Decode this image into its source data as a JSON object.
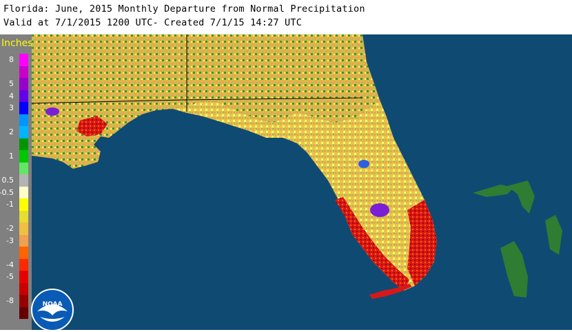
{
  "header": {
    "title_line1": "Florida: June, 2015 Monthly Departure from Normal Precipitation",
    "title_line2": "Valid at 7/1/2015 1200 UTC- Created 7/1/15 14:27 UTC"
  },
  "legend": {
    "title": "Inches",
    "levels": [
      {
        "label": "8",
        "color": "#ff00ff"
      },
      {
        "label": "",
        "color": "#c800c8"
      },
      {
        "label": "5",
        "color": "#9600c8"
      },
      {
        "label": "4",
        "color": "#6400e6"
      },
      {
        "label": "3",
        "color": "#0000ff"
      },
      {
        "label": "",
        "color": "#0096ff"
      },
      {
        "label": "2",
        "color": "#00b4ff"
      },
      {
        "label": "",
        "color": "#009600"
      },
      {
        "label": "1",
        "color": "#00c800"
      },
      {
        "label": "",
        "color": "#64e664"
      },
      {
        "label": "0.5",
        "color": "#b4b4b4"
      },
      {
        "label": "-0.5",
        "color": "#ffffc8"
      },
      {
        "label": "-1",
        "color": "#ffff00"
      },
      {
        "label": "",
        "color": "#e6dc32"
      },
      {
        "label": "-2",
        "color": "#f0c040"
      },
      {
        "label": "-3",
        "color": "#f0a050"
      },
      {
        "label": "",
        "color": "#ff6400"
      },
      {
        "label": "-4",
        "color": "#ff2800"
      },
      {
        "label": "-5",
        "color": "#e60000"
      },
      {
        "label": "",
        "color": "#c80000"
      },
      {
        "label": "-8",
        "color": "#960000"
      },
      {
        "label": "",
        "color": "#640000"
      }
    ]
  },
  "map": {
    "ocean_color": "#0f4a73",
    "land_base_color": "#e8c040",
    "bahamas_color": "#2e7d32"
  },
  "logo": {
    "text": "NOAA"
  }
}
